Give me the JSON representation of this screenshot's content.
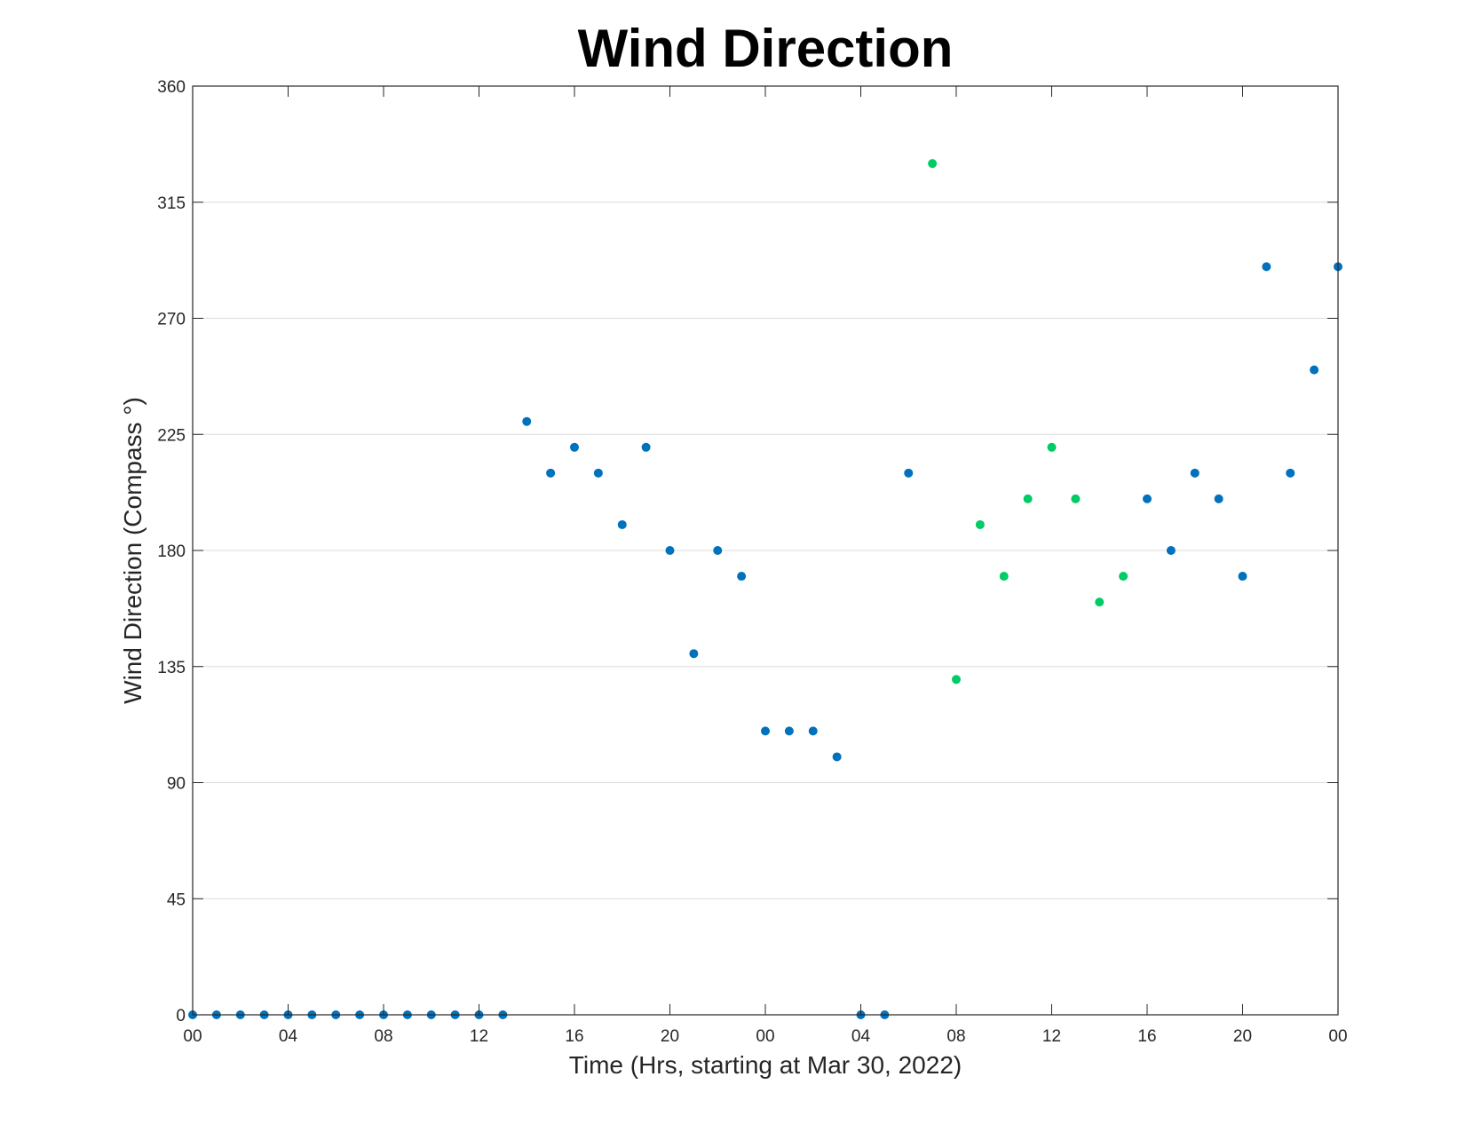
{
  "chart_data": {
    "type": "scatter",
    "title": "Wind Direction",
    "xlabel": "Time (Hrs, starting at Mar 30, 2022)",
    "ylabel": "Wind Direction (Compass °)",
    "xlim": [
      0,
      48
    ],
    "ylim": [
      0,
      360
    ],
    "x_ticks": [
      0,
      4,
      8,
      12,
      16,
      20,
      24,
      28,
      32,
      36,
      40,
      44,
      48
    ],
    "x_tick_labels": [
      "00",
      "04",
      "08",
      "12",
      "16",
      "20",
      "00",
      "04",
      "08",
      "12",
      "16",
      "20",
      "00"
    ],
    "y_ticks": [
      0,
      45,
      90,
      135,
      180,
      225,
      270,
      315,
      360
    ],
    "grid": "horizontal",
    "colors": {
      "series_1": "#0072BD",
      "series_2": "#00CC66",
      "frame": "#262626",
      "grid": "#dcdcdc"
    },
    "series": [
      {
        "color": "#0072BD",
        "points": [
          [
            0,
            0
          ],
          [
            1,
            0
          ],
          [
            2,
            0
          ],
          [
            3,
            0
          ],
          [
            4,
            0
          ],
          [
            5,
            0
          ],
          [
            6,
            0
          ],
          [
            7,
            0
          ],
          [
            8,
            0
          ],
          [
            9,
            0
          ],
          [
            10,
            0
          ],
          [
            11,
            0
          ],
          [
            12,
            0
          ],
          [
            13,
            0
          ],
          [
            14,
            230
          ],
          [
            15,
            210
          ],
          [
            16,
            220
          ],
          [
            17,
            210
          ],
          [
            18,
            190
          ],
          [
            19,
            220
          ],
          [
            20,
            180
          ],
          [
            21,
            140
          ],
          [
            22,
            180
          ],
          [
            23,
            170
          ],
          [
            24,
            110
          ],
          [
            25,
            110
          ],
          [
            26,
            110
          ],
          [
            27,
            100
          ],
          [
            28,
            0
          ],
          [
            29,
            0
          ],
          [
            30,
            210
          ],
          [
            40,
            200
          ],
          [
            41,
            180
          ],
          [
            42,
            210
          ],
          [
            43,
            200
          ],
          [
            44,
            170
          ],
          [
            45,
            290
          ],
          [
            46,
            210
          ],
          [
            47,
            250
          ],
          [
            48,
            290
          ]
        ]
      },
      {
        "color": "#00CC66",
        "points": [
          [
            31,
            330
          ],
          [
            32,
            130
          ],
          [
            33,
            190
          ],
          [
            34,
            170
          ],
          [
            35,
            200
          ],
          [
            36,
            220
          ],
          [
            37,
            200
          ],
          [
            38,
            160
          ],
          [
            39,
            170
          ]
        ]
      }
    ]
  }
}
